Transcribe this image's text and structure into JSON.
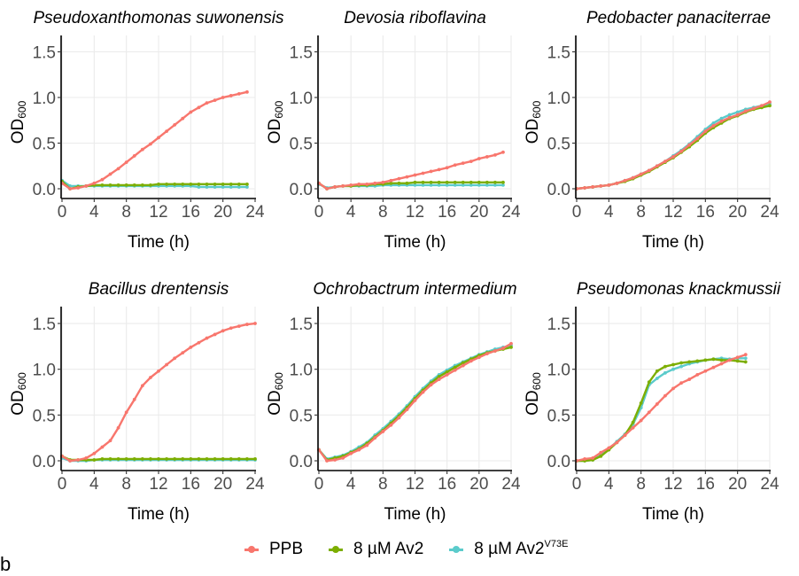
{
  "chart_data": {
    "type": "line",
    "figure_label": "b",
    "xlabel": "Time (h)",
    "ylabel": "OD",
    "ylabel_subscript": "600",
    "xlim": [
      0,
      24
    ],
    "ylim": [
      0,
      1.5
    ],
    "xticks": [
      0,
      4,
      8,
      12,
      16,
      20,
      24
    ],
    "xtick_labels": [
      "0",
      "4",
      "8",
      "12",
      "16",
      "20",
      "24"
    ],
    "yticks": [
      0,
      0.5,
      1.0,
      1.5
    ],
    "ytick_labels": [
      "0.0",
      "0.5",
      "1.0",
      "1.5"
    ],
    "grid": true,
    "legend_position": "bottom",
    "legend": [
      {
        "key": "ppb",
        "label": "PPB",
        "superscript": "",
        "color": "#F8766D"
      },
      {
        "key": "av2",
        "label": "8 µM Av2",
        "superscript": "",
        "color": "#7CAE00"
      },
      {
        "key": "av2v73e",
        "label": "8 µM Av2",
        "superscript": "V73E",
        "color": "#5BCBCB"
      }
    ],
    "panels": [
      {
        "title": "Pseudoxanthomonas suwonensis",
        "series": {
          "ppb": {
            "x": [
              0,
              1,
              2,
              3,
              4,
              5,
              6,
              7,
              8,
              9,
              10,
              11,
              12,
              13,
              14,
              15,
              16,
              17,
              18,
              19,
              20,
              21,
              22,
              23
            ],
            "y": [
              0.06,
              0.0,
              0.01,
              0.03,
              0.06,
              0.1,
              0.16,
              0.22,
              0.29,
              0.36,
              0.43,
              0.49,
              0.56,
              0.63,
              0.7,
              0.77,
              0.84,
              0.89,
              0.94,
              0.97,
              1.0,
              1.02,
              1.04,
              1.06
            ]
          },
          "av2": {
            "x": [
              0,
              1,
              2,
              3,
              4,
              5,
              6,
              7,
              8,
              9,
              10,
              11,
              12,
              13,
              14,
              15,
              16,
              17,
              18,
              19,
              20,
              21,
              22,
              23
            ],
            "y": [
              0.08,
              0.0,
              0.02,
              0.03,
              0.04,
              0.04,
              0.04,
              0.04,
              0.04,
              0.04,
              0.04,
              0.04,
              0.05,
              0.05,
              0.05,
              0.05,
              0.05,
              0.05,
              0.05,
              0.05,
              0.05,
              0.05,
              0.05,
              0.05
            ]
          },
          "av2v73e": {
            "x": [
              0,
              1,
              2,
              3,
              4,
              5,
              6,
              7,
              8,
              9,
              10,
              11,
              12,
              13,
              14,
              15,
              16,
              17,
              18,
              19,
              20,
              21,
              22,
              23
            ],
            "y": [
              0.09,
              0.03,
              0.03,
              0.03,
              0.03,
              0.03,
              0.03,
              0.03,
              0.03,
              0.03,
              0.03,
              0.03,
              0.03,
              0.03,
              0.03,
              0.03,
              0.03,
              0.02,
              0.02,
              0.02,
              0.02,
              0.02,
              0.02,
              0.02
            ]
          }
        }
      },
      {
        "title": "Devosia riboflavina",
        "series": {
          "ppb": {
            "x": [
              0,
              1,
              2,
              3,
              4,
              5,
              6,
              7,
              8,
              9,
              10,
              11,
              12,
              13,
              14,
              15,
              16,
              17,
              18,
              19,
              20,
              21,
              22,
              23
            ],
            "y": [
              0.06,
              0.0,
              0.02,
              0.03,
              0.04,
              0.05,
              0.05,
              0.06,
              0.07,
              0.09,
              0.11,
              0.13,
              0.15,
              0.17,
              0.19,
              0.21,
              0.23,
              0.26,
              0.28,
              0.3,
              0.33,
              0.35,
              0.37,
              0.4
            ]
          },
          "av2": {
            "x": [
              0,
              1,
              2,
              3,
              4,
              5,
              6,
              7,
              8,
              9,
              10,
              11,
              12,
              13,
              14,
              15,
              16,
              17,
              18,
              19,
              20,
              21,
              22,
              23
            ],
            "y": [
              0.06,
              0.0,
              0.02,
              0.03,
              0.03,
              0.04,
              0.04,
              0.05,
              0.05,
              0.06,
              0.06,
              0.06,
              0.07,
              0.07,
              0.07,
              0.07,
              0.07,
              0.07,
              0.07,
              0.07,
              0.07,
              0.07,
              0.07,
              0.07
            ]
          },
          "av2v73e": {
            "x": [
              0,
              1,
              2,
              3,
              4,
              5,
              6,
              7,
              8,
              9,
              10,
              11,
              12,
              13,
              14,
              15,
              16,
              17,
              18,
              19,
              20,
              21,
              22,
              23
            ],
            "y": [
              0.05,
              0.01,
              0.02,
              0.03,
              0.03,
              0.03,
              0.03,
              0.03,
              0.04,
              0.04,
              0.04,
              0.04,
              0.04,
              0.04,
              0.04,
              0.04,
              0.04,
              0.04,
              0.04,
              0.04,
              0.04,
              0.04,
              0.04,
              0.04
            ]
          }
        }
      },
      {
        "title": "Pedobacter panaciterrae",
        "series": {
          "ppb": {
            "x": [
              0,
              1,
              2,
              3,
              4,
              5,
              6,
              7,
              8,
              9,
              10,
              11,
              12,
              13,
              14,
              15,
              16,
              17,
              18,
              19,
              20,
              21,
              22,
              23,
              24
            ],
            "y": [
              0.0,
              0.01,
              0.02,
              0.03,
              0.04,
              0.06,
              0.09,
              0.12,
              0.16,
              0.2,
              0.25,
              0.3,
              0.35,
              0.41,
              0.48,
              0.55,
              0.63,
              0.69,
              0.74,
              0.78,
              0.81,
              0.85,
              0.88,
              0.91,
              0.95
            ]
          },
          "av2": {
            "x": [
              0,
              1,
              2,
              3,
              4,
              5,
              6,
              7,
              8,
              9,
              10,
              11,
              12,
              13,
              14,
              15,
              16,
              17,
              18,
              19,
              20,
              21,
              22,
              23,
              24
            ],
            "y": [
              0.0,
              0.01,
              0.02,
              0.03,
              0.04,
              0.06,
              0.08,
              0.11,
              0.15,
              0.19,
              0.24,
              0.29,
              0.34,
              0.4,
              0.46,
              0.53,
              0.61,
              0.67,
              0.72,
              0.77,
              0.8,
              0.84,
              0.87,
              0.89,
              0.91
            ]
          },
          "av2v73e": {
            "x": [
              0,
              1,
              2,
              3,
              4,
              5,
              6,
              7,
              8,
              9,
              10,
              11,
              12,
              13,
              14,
              15,
              16,
              17,
              18,
              19,
              20,
              21,
              22,
              23,
              24
            ],
            "y": [
              0.0,
              0.01,
              0.02,
              0.03,
              0.04,
              0.06,
              0.09,
              0.12,
              0.16,
              0.2,
              0.25,
              0.3,
              0.36,
              0.42,
              0.49,
              0.57,
              0.65,
              0.72,
              0.77,
              0.81,
              0.84,
              0.87,
              0.89,
              0.91,
              0.93
            ]
          }
        }
      },
      {
        "title": "Bacillus drentensis",
        "series": {
          "ppb": {
            "x": [
              0,
              1,
              2,
              3,
              4,
              5,
              6,
              7,
              8,
              9,
              10,
              11,
              12,
              13,
              14,
              15,
              16,
              17,
              18,
              19,
              20,
              21,
              22,
              23,
              24
            ],
            "y": [
              0.05,
              0.0,
              0.01,
              0.03,
              0.08,
              0.15,
              0.22,
              0.36,
              0.53,
              0.67,
              0.82,
              0.91,
              0.98,
              1.05,
              1.12,
              1.18,
              1.24,
              1.29,
              1.34,
              1.38,
              1.42,
              1.45,
              1.47,
              1.49,
              1.5
            ]
          },
          "av2": {
            "x": [
              0,
              1,
              2,
              3,
              4,
              5,
              6,
              7,
              8,
              9,
              10,
              11,
              12,
              13,
              14,
              15,
              16,
              17,
              18,
              19,
              20,
              21,
              22,
              23,
              24
            ],
            "y": [
              0.05,
              0.01,
              0.01,
              0.01,
              0.01,
              0.02,
              0.02,
              0.02,
              0.02,
              0.02,
              0.02,
              0.02,
              0.02,
              0.02,
              0.02,
              0.02,
              0.02,
              0.02,
              0.02,
              0.02,
              0.02,
              0.02,
              0.02,
              0.02,
              0.02
            ]
          },
          "av2v73e": {
            "x": [
              0,
              1,
              2,
              3,
              4,
              5,
              6,
              7,
              8,
              9,
              10,
              11,
              12,
              13,
              14,
              15,
              16,
              17,
              18,
              19,
              20,
              21,
              22,
              23,
              24
            ],
            "y": [
              0.03,
              0.0,
              0.0,
              0.0,
              0.01,
              0.01,
              0.01,
              0.01,
              0.01,
              0.01,
              0.01,
              0.01,
              0.01,
              0.01,
              0.01,
              0.01,
              0.01,
              0.01,
              0.01,
              0.01,
              0.01,
              0.01,
              0.01,
              0.01,
              0.01
            ]
          }
        }
      },
      {
        "title": "Ochrobactrum intermedium",
        "series": {
          "ppb": {
            "x": [
              0,
              1,
              2,
              3,
              4,
              5,
              6,
              7,
              8,
              9,
              10,
              11,
              12,
              13,
              14,
              15,
              16,
              17,
              18,
              19,
              20,
              21,
              22,
              23,
              24
            ],
            "y": [
              0.12,
              0.0,
              0.01,
              0.03,
              0.08,
              0.12,
              0.17,
              0.25,
              0.32,
              0.39,
              0.47,
              0.56,
              0.66,
              0.75,
              0.83,
              0.89,
              0.94,
              0.99,
              1.04,
              1.09,
              1.13,
              1.17,
              1.2,
              1.23,
              1.28
            ]
          },
          "av2": {
            "x": [
              0,
              1,
              2,
              3,
              4,
              5,
              6,
              7,
              8,
              9,
              10,
              11,
              12,
              13,
              14,
              15,
              16,
              17,
              18,
              19,
              20,
              21,
              22,
              23,
              24
            ],
            "y": [
              0.12,
              0.01,
              0.03,
              0.05,
              0.09,
              0.13,
              0.19,
              0.26,
              0.33,
              0.41,
              0.49,
              0.58,
              0.68,
              0.77,
              0.85,
              0.92,
              0.97,
              1.02,
              1.07,
              1.11,
              1.15,
              1.18,
              1.2,
              1.22,
              1.24
            ]
          },
          "av2v73e": {
            "x": [
              0,
              1,
              2,
              3,
              4,
              5,
              6,
              7,
              8,
              9,
              10,
              11,
              12,
              13,
              14,
              15,
              16,
              17,
              18,
              19,
              20,
              21,
              22,
              23,
              24
            ],
            "y": [
              0.12,
              0.02,
              0.04,
              0.06,
              0.1,
              0.15,
              0.2,
              0.28,
              0.35,
              0.43,
              0.51,
              0.6,
              0.7,
              0.79,
              0.87,
              0.94,
              0.99,
              1.04,
              1.08,
              1.12,
              1.16,
              1.19,
              1.22,
              1.24,
              1.26
            ]
          }
        }
      },
      {
        "title": "Pseudomonas knackmussii",
        "series": {
          "ppb": {
            "x": [
              0,
              1,
              2,
              3,
              4,
              5,
              6,
              7,
              8,
              9,
              10,
              11,
              12,
              13,
              14,
              15,
              16,
              17,
              18,
              19,
              20,
              21
            ],
            "y": [
              0.0,
              0.02,
              0.03,
              0.09,
              0.14,
              0.2,
              0.28,
              0.36,
              0.44,
              0.53,
              0.62,
              0.71,
              0.79,
              0.85,
              0.89,
              0.94,
              0.98,
              1.02,
              1.06,
              1.1,
              1.13,
              1.16
            ]
          },
          "av2": {
            "x": [
              0,
              1,
              2,
              3,
              4,
              5,
              6,
              7,
              8,
              9,
              10,
              11,
              12,
              13,
              14,
              15,
              16,
              17,
              18,
              19,
              20,
              21
            ],
            "y": [
              0.0,
              0.0,
              0.01,
              0.05,
              0.12,
              0.2,
              0.28,
              0.42,
              0.63,
              0.86,
              0.98,
              1.03,
              1.05,
              1.07,
              1.08,
              1.09,
              1.1,
              1.11,
              1.1,
              1.1,
              1.09,
              1.08
            ]
          },
          "av2v73e": {
            "x": [
              0,
              1,
              2,
              3,
              4,
              5,
              6,
              7,
              8,
              9,
              10,
              11,
              12,
              13,
              14,
              15,
              16,
              17,
              18,
              19,
              20,
              21
            ],
            "y": [
              0.0,
              0.0,
              0.01,
              0.06,
              0.13,
              0.21,
              0.29,
              0.4,
              0.58,
              0.83,
              0.9,
              0.96,
              1.0,
              1.03,
              1.06,
              1.08,
              1.1,
              1.11,
              1.12,
              1.11,
              1.12,
              1.12
            ]
          }
        }
      }
    ]
  }
}
